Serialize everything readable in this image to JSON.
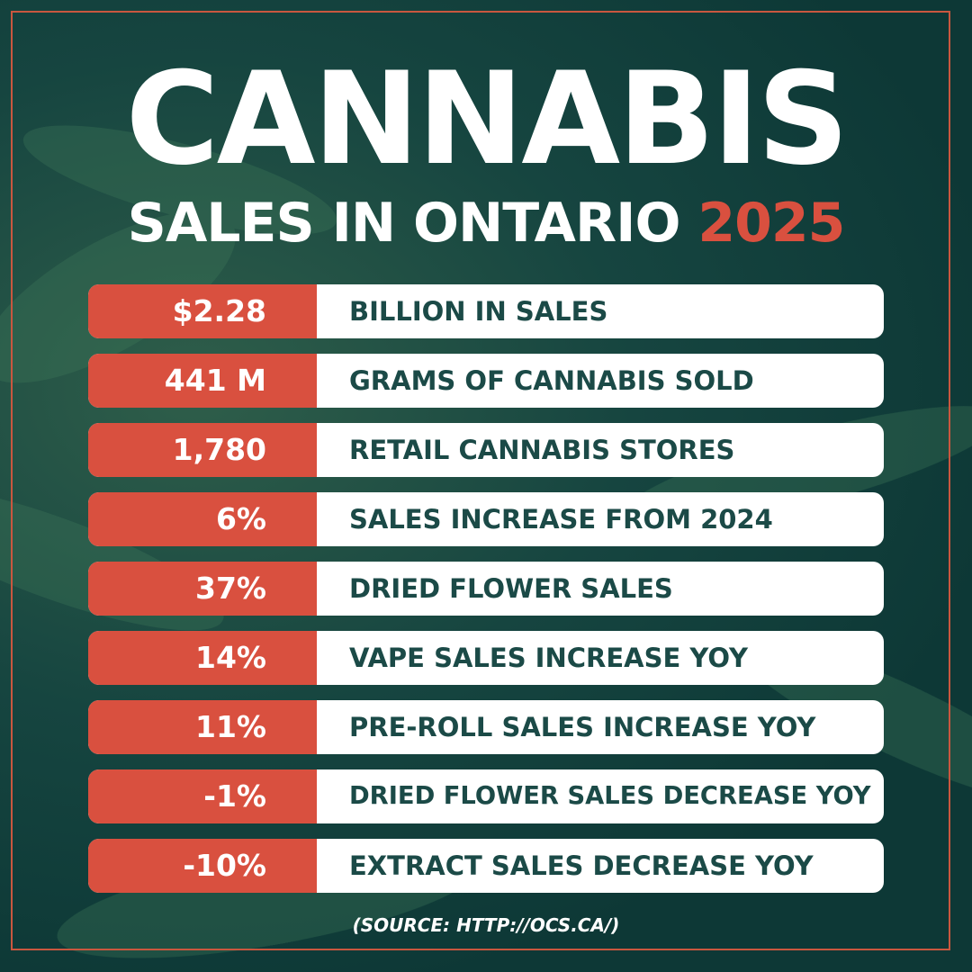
{
  "title": "CANNABIS",
  "subtitle": "SALES IN ONTARIO",
  "year": "2025",
  "rows": [
    {
      "value": "$2.28",
      "label": "BILLION IN SALES"
    },
    {
      "value": "441 M",
      "label": "GRAMS OF CANNABIS SOLD"
    },
    {
      "value": "1,780",
      "label": "RETAIL CANNABIS STORES"
    },
    {
      "value": "6%",
      "label": "SALES INCREASE FROM 2024"
    },
    {
      "value": "37%",
      "label": "DRIED FLOWER SALES"
    },
    {
      "value": "14%",
      "label": "VAPE SALES INCREASE YOY"
    },
    {
      "value": "11%",
      "label": "PRE-ROLL SALES INCREASE YOY"
    },
    {
      "value": "-1%",
      "label": "DRIED FLOWER SALES DECREASE YOY"
    },
    {
      "value": "-10%",
      "label": "EXTRACT SALES DECREASE YOY"
    }
  ],
  "source": "(SOURCE: HTTP://OCS.CA/)"
}
